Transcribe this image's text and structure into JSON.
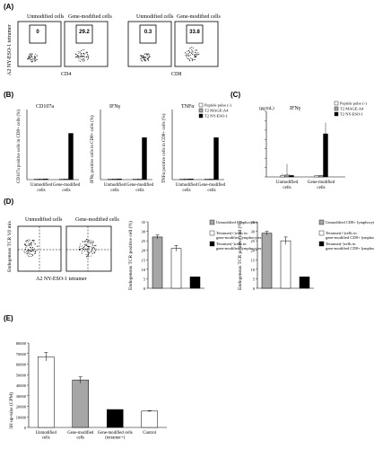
{
  "panels": {
    "A": {
      "label": "(A)",
      "ylabel": "A2 NY-ESO-1 tetramer",
      "groups": [
        {
          "header_left": "Unmodified cells",
          "header_right": "Gene-modified cells",
          "values": [
            "0",
            "29.2"
          ],
          "xlabel": "CD4"
        },
        {
          "header_left": "Unmodified cells",
          "header_right": "Gene-modified cells",
          "values": [
            "0.3",
            "33.8"
          ],
          "xlabel": "CD8"
        }
      ]
    },
    "B": {
      "label": "(B)"
    },
    "C": {
      "label": "(C)"
    },
    "D": {
      "label": "(D)",
      "flow_header_left": "Unmodified cells",
      "flow_header_right": "Gene-modified cells",
      "flow_ylabel": "Endogenous TCR Vβ mix",
      "flow_xlabel": "A2 NY-ESO-1 tetramer"
    },
    "E": {
      "label": "(E)"
    }
  },
  "chart_data": [
    {
      "id": "B1",
      "type": "bar",
      "title": "CD107a",
      "ylabel": "CD107a positive cells in CD8+ cells (%)",
      "categories": [
        "Unmodified cells",
        "Gene-modified cells"
      ],
      "series": [
        {
          "name": "Peptide pulse (-)",
          "values": [
            0.5,
            0.5
          ]
        },
        {
          "name": "T2 MAGE-A4",
          "values": [
            0.5,
            0.5
          ]
        },
        {
          "name": "T2 NY-ESO-1",
          "values": [
            0.5,
            33
          ]
        }
      ],
      "ylim": [
        0,
        50
      ],
      "legend": [
        "Peptide pulse (-)",
        "T2 MAGE-A4",
        "T2 NY-ESO-1"
      ]
    },
    {
      "id": "B2",
      "type": "bar",
      "title": "IFNγ",
      "ylabel": "IFNγ positive cells in CD8+ cells (%)",
      "categories": [
        "Unmodified cells",
        "Gene-modified cells"
      ],
      "series": [
        {
          "name": "Peptide pulse (-)",
          "values": [
            0.5,
            0.5
          ]
        },
        {
          "name": "T2 MAGE-A4",
          "values": [
            0.5,
            0.5
          ]
        },
        {
          "name": "T2 NY-ESO-1",
          "values": [
            0.5,
            30
          ]
        }
      ],
      "ylim": [
        0,
        50
      ]
    },
    {
      "id": "B3",
      "type": "bar",
      "title": "TNFα",
      "ylabel": "TNFα positive cells in CD8+ cells (%)",
      "categories": [
        "Unmodified cells",
        "Gene-modified cells"
      ],
      "series": [
        {
          "name": "Peptide pulse (-)",
          "values": [
            0.5,
            0.5
          ]
        },
        {
          "name": "T2 MAGE-A4",
          "values": [
            0.5,
            0.5
          ]
        },
        {
          "name": "T2 NY-ESO-1",
          "values": [
            0.5,
            30
          ]
        }
      ],
      "ylim": [
        0,
        50
      ]
    },
    {
      "id": "C",
      "type": "bar",
      "title": "IFNγ",
      "unit": "(pg/mL)",
      "categories": [
        "Unmodified cells",
        "Gene-modified cells"
      ],
      "series": [
        {
          "name": "Peptide pulse (-)",
          "values": [
            150,
            120
          ]
        },
        {
          "name": "T2 MAGE-A4",
          "values": [
            200,
            150
          ]
        },
        {
          "name": "T2 NY-ESO-1",
          "values": [
            150,
            4600
          ]
        }
      ],
      "errors": [
        [
          200,
          40
        ],
        [
          1200,
          60
        ],
        [
          100,
          1200
        ]
      ],
      "ylim": [
        0,
        7000
      ],
      "yticks": [
        "",
        "",
        "",
        "",
        "",
        "",
        "",
        ""
      ],
      "legend": [
        "Peptide pulse (-)",
        "T2 MAGE-A4",
        "T2 NY-ESO-1"
      ]
    },
    {
      "id": "D1",
      "type": "bar",
      "ylabel": "Endogenous TCR positive cell (%)",
      "categories": [
        "Unmodified lymphocytes",
        "Tetramer(+)cells in gene-modified lymphocytes",
        "Tetramer(-)cells in gene-modified lymphocytes"
      ],
      "values": [
        27,
        21,
        6
      ],
      "errors": [
        1,
        1.5,
        0
      ],
      "ylim": [
        0,
        35
      ],
      "yticks": [
        "0",
        "5",
        "10",
        "15",
        "20",
        "25",
        "30",
        "35"
      ],
      "legend": [
        "Unmodified lymphocytes",
        "Tetramer(+)cells in gene-modified lymphocytes",
        "Tetramer(-)cells in gene-modified lymphocytes"
      ]
    },
    {
      "id": "D2",
      "type": "bar",
      "ylabel": "Endogenous TCR positive cell (%)",
      "categories": [
        "Unmodified CD8+ lymphocytes",
        "Tetramer(+)cells in gene-modified CD8+ lymphocytes",
        "Tetramer(-)cells in gene-modified CD8+ lymphocytes"
      ],
      "values": [
        29,
        25,
        6
      ],
      "errors": [
        1,
        2,
        0
      ],
      "ylim": [
        0,
        35
      ],
      "yticks": [
        "0",
        "5",
        "10",
        "15",
        "20",
        "25",
        "30",
        "35"
      ],
      "legend": [
        "Unmodified CD8+ lymphocytes",
        "Tetramer(+)cells in gene-modified CD8+ lymphocytes",
        "Tetramer(-)cells in gene-modified CD8+ lymphocytes"
      ]
    },
    {
      "id": "E",
      "type": "bar",
      "ylabel": "3H up-take (CPM)",
      "categories": [
        "Unmodified cells",
        "Gene-modified cells",
        "Gene-modified cells (tetramer+)",
        "Control"
      ],
      "values": [
        67000,
        45000,
        17000,
        15500
      ],
      "errors": [
        4000,
        3000,
        0,
        500
      ],
      "ylim": [
        0,
        80000
      ],
      "yticks": [
        "0",
        "10000",
        "20000",
        "30000",
        "40000",
        "50000",
        "60000",
        "70000",
        "80000"
      ]
    }
  ],
  "colors": {
    "white": "#ffffff",
    "gray": "#a6a6a6",
    "black": "#000000"
  }
}
